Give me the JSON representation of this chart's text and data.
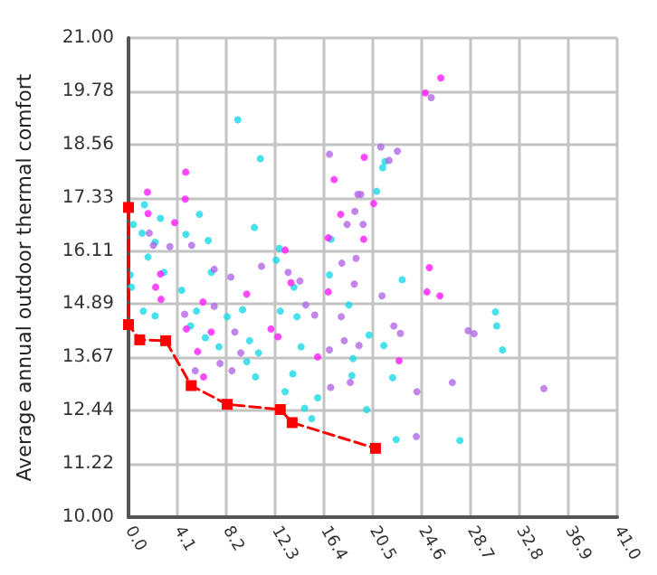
{
  "chart_data": {
    "type": "scatter",
    "ylabel": "Average annual outdoor thermal comfort",
    "xlim": [
      0,
      41
    ],
    "ylim": [
      10,
      21
    ],
    "xticks": [
      {
        "value": 0,
        "label": "0.0"
      },
      4.1,
      8.2,
      12.3,
      16.4,
      20.5,
      24.6,
      28.7,
      32.8,
      36.9,
      {
        "value": 41,
        "label": "41.0"
      }
    ],
    "yticks": [
      {
        "value": 10,
        "label": "10.00"
      },
      11.22,
      12.44,
      13.67,
      14.89,
      16.11,
      17.33,
      18.56,
      19.78,
      {
        "value": 21,
        "label": "21.00"
      }
    ],
    "grid": true,
    "marker": "circle",
    "series": [
      {
        "color": "#19d9e6",
        "x": [
          9.17,
          11.06,
          0.4,
          1.34,
          2.68,
          1.14,
          2.23,
          1.64,
          2.97,
          0.25,
          1.24,
          2.23,
          4.46,
          4.81,
          5.95,
          6.69,
          6.94,
          5.7,
          5.21,
          6.45,
          7.59,
          8.28,
          9.57,
          10.56,
          10.16,
          9.92,
          10.66,
          10.91,
          12.39,
          12.64,
          12.74,
          13.88,
          14.13,
          14.48,
          13.78,
          13.14,
          14.77,
          15.87,
          15.37,
          16.86,
          17.0,
          18.49,
          18.84,
          20.18,
          19.98,
          21.42,
          22.16,
          22.46,
          22.96,
          20.82,
          21.52,
          21.32,
          30.79,
          30.89,
          31.38,
          27.81,
          18.74,
          0.15
        ],
        "values": [
          19.12,
          18.23,
          16.72,
          17.17,
          16.86,
          16.52,
          16.31,
          15.97,
          15.62,
          15.28,
          14.73,
          14.62,
          15.21,
          16.49,
          16.95,
          16.35,
          15.62,
          14.73,
          14.39,
          14.12,
          13.91,
          14.6,
          14.76,
          16.65,
          14.05,
          13.57,
          13.22,
          13.77,
          15.9,
          16.17,
          14.73,
          15.28,
          14.6,
          13.91,
          13.29,
          12.88,
          12.5,
          12.74,
          12.26,
          15.56,
          16.38,
          14.87,
          13.64,
          14.18,
          12.47,
          13.94,
          13.2,
          11.78,
          15.45,
          17.48,
          18.16,
          18.02,
          14.71,
          14.39,
          13.84,
          11.76,
          13.25,
          15.56
        ]
      },
      {
        "color": "#b266e6",
        "x": [
          25.4,
          16.86,
          21.17,
          22.56,
          21.86,
          19.24,
          19.49,
          18.99,
          18.34,
          19.68,
          17.9,
          19.09,
          18.94,
          17.85,
          18.1,
          19.34,
          18.6,
          16.96,
          16.86,
          21.27,
          22.26,
          22.81,
          24.2,
          24.15,
          27.17,
          28.5,
          29.0,
          34.85,
          8.58,
          8.92,
          7.68,
          8.68,
          9.42,
          13.39,
          14.38,
          14.87,
          15.62,
          11.16,
          1.74,
          2.08,
          3.47,
          4.71,
          5.3,
          7.19,
          5.6,
          7.19
        ],
        "values": [
          19.63,
          18.33,
          18.5,
          18.4,
          18.19,
          17.41,
          17.41,
          17.02,
          16.72,
          16.72,
          15.83,
          15.94,
          15.35,
          14.6,
          14.05,
          13.94,
          13.09,
          12.98,
          13.84,
          15.08,
          14.39,
          14.22,
          12.88,
          11.85,
          13.09,
          14.28,
          14.21,
          12.95,
          15.51,
          14.25,
          13.53,
          13.36,
          13.77,
          15.62,
          15.42,
          14.87,
          14.64,
          15.76,
          16.52,
          16.24,
          16.21,
          14.66,
          16.24,
          15.69,
          13.36,
          14.84
        ]
      },
      {
        "color": "#ff1aff",
        "x": [
          26.2,
          24.9,
          4.8,
          4.76,
          1.59,
          3.87,
          2.68,
          2.28,
          9.92,
          6.25,
          4.86,
          6.3,
          11.95,
          12.54,
          15.87,
          19.78,
          20.57,
          19.73,
          13.63,
          16.76,
          16.76,
          22.7,
          25.24,
          25.04,
          26.13,
          1.64,
          13.14,
          2.73,
          17.25,
          17.8,
          5.8,
          6.94
        ],
        "values": [
          20.08,
          19.74,
          17.92,
          17.3,
          17.46,
          16.76,
          15.58,
          15.28,
          15.12,
          14.94,
          14.32,
          13.22,
          14.32,
          14.14,
          13.68,
          18.26,
          17.2,
          16.38,
          15.38,
          16.41,
          15.17,
          13.59,
          15.73,
          15.17,
          15.08,
          16.97,
          16.13,
          15.0,
          17.75,
          16.95,
          13.8,
          14.25
        ]
      },
      {
        "type": "line",
        "color": "#ff0000",
        "line_style": "dashed",
        "marker": "square",
        "x": [
          0,
          0,
          0.94,
          3.12,
          5.26,
          8.28,
          12.74,
          13.73,
          20.72
        ],
        "values": [
          17.11,
          14.42,
          14.07,
          14.05,
          13.02,
          12.59,
          12.47,
          12.17,
          11.58
        ]
      }
    ]
  }
}
